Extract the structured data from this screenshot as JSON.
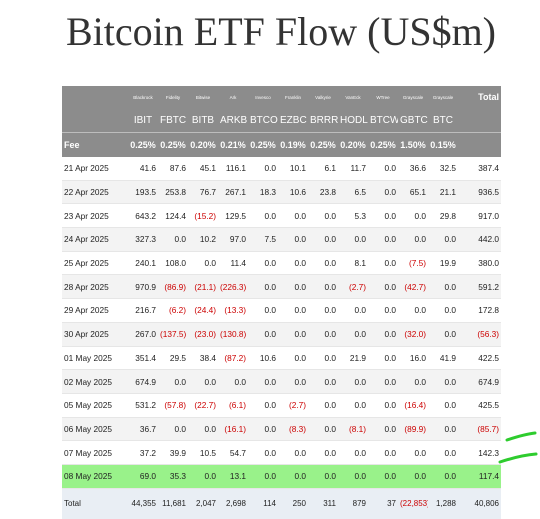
{
  "title": "Bitcoin ETF Flow (US$m)",
  "columns": [
    {
      "issuer": "Blackrock",
      "ticker": "IBIT",
      "fee": "0.25%"
    },
    {
      "issuer": "Fidelity",
      "ticker": "FBTC",
      "fee": "0.25%"
    },
    {
      "issuer": "Bitwise",
      "ticker": "BITB",
      "fee": "0.20%"
    },
    {
      "issuer": "Ark",
      "ticker": "ARKB",
      "fee": "0.21%"
    },
    {
      "issuer": "Invesco",
      "ticker": "BTCO",
      "fee": "0.25%"
    },
    {
      "issuer": "Franklin",
      "ticker": "EZBC",
      "fee": "0.19%"
    },
    {
      "issuer": "Valkyrie",
      "ticker": "BRRR",
      "fee": "0.25%"
    },
    {
      "issuer": "VanEck",
      "ticker": "HODL",
      "fee": "0.20%"
    },
    {
      "issuer": "WTree",
      "ticker": "BTCW",
      "fee": "0.25%"
    },
    {
      "issuer": "Grayscale",
      "ticker": "GBTC",
      "fee": "1.50%"
    },
    {
      "issuer": "Grayscale",
      "ticker": "BTC",
      "fee": "0.15%"
    }
  ],
  "total_header": "Total",
  "fee_label": "Fee",
  "rows": [
    {
      "date": "21 Apr 2025",
      "values": [
        "41.6",
        "87.6",
        "45.1",
        "116.1",
        "0.0",
        "10.1",
        "6.1",
        "11.7",
        "0.0",
        "36.6",
        "32.5"
      ],
      "total": "387.4"
    },
    {
      "date": "22 Apr 2025",
      "values": [
        "193.5",
        "253.8",
        "76.7",
        "267.1",
        "18.3",
        "10.6",
        "23.8",
        "6.5",
        "0.0",
        "65.1",
        "21.1"
      ],
      "total": "936.5"
    },
    {
      "date": "23 Apr 2025",
      "values": [
        "643.2",
        "124.4",
        "(15.2)",
        "129.5",
        "0.0",
        "0.0",
        "0.0",
        "5.3",
        "0.0",
        "0.0",
        "29.8"
      ],
      "total": "917.0"
    },
    {
      "date": "24 Apr 2025",
      "values": [
        "327.3",
        "0.0",
        "10.2",
        "97.0",
        "7.5",
        "0.0",
        "0.0",
        "0.0",
        "0.0",
        "0.0",
        "0.0"
      ],
      "total": "442.0"
    },
    {
      "date": "25 Apr 2025",
      "values": [
        "240.1",
        "108.0",
        "0.0",
        "11.4",
        "0.0",
        "0.0",
        "0.0",
        "8.1",
        "0.0",
        "(7.5)",
        "19.9"
      ],
      "total": "380.0"
    },
    {
      "date": "28 Apr 2025",
      "values": [
        "970.9",
        "(86.9)",
        "(21.1)",
        "(226.3)",
        "0.0",
        "0.0",
        "0.0",
        "(2.7)",
        "0.0",
        "(42.7)",
        "0.0"
      ],
      "total": "591.2"
    },
    {
      "date": "29 Apr 2025",
      "values": [
        "216.7",
        "(6.2)",
        "(24.4)",
        "(13.3)",
        "0.0",
        "0.0",
        "0.0",
        "0.0",
        "0.0",
        "0.0",
        "0.0"
      ],
      "total": "172.8"
    },
    {
      "date": "30 Apr 2025",
      "values": [
        "267.0",
        "(137.5)",
        "(23.0)",
        "(130.8)",
        "0.0",
        "0.0",
        "0.0",
        "0.0",
        "0.0",
        "(32.0)",
        "0.0"
      ],
      "total": "(56.3)"
    },
    {
      "date": "01 May 2025",
      "values": [
        "351.4",
        "29.5",
        "38.4",
        "(87.2)",
        "10.6",
        "0.0",
        "0.0",
        "21.9",
        "0.0",
        "16.0",
        "41.9"
      ],
      "total": "422.5"
    },
    {
      "date": "02 May 2025",
      "values": [
        "674.9",
        "0.0",
        "0.0",
        "0.0",
        "0.0",
        "0.0",
        "0.0",
        "0.0",
        "0.0",
        "0.0",
        "0.0"
      ],
      "total": "674.9"
    },
    {
      "date": "05 May 2025",
      "values": [
        "531.2",
        "(57.8)",
        "(22.7)",
        "(6.1)",
        "0.0",
        "(2.7)",
        "0.0",
        "0.0",
        "0.0",
        "(16.4)",
        "0.0"
      ],
      "total": "425.5"
    },
    {
      "date": "06 May 2025",
      "values": [
        "36.7",
        "0.0",
        "0.0",
        "(16.1)",
        "0.0",
        "(8.3)",
        "0.0",
        "(8.1)",
        "0.0",
        "(89.9)",
        "0.0"
      ],
      "total": "(85.7)"
    },
    {
      "date": "07 May 2025",
      "values": [
        "37.2",
        "39.9",
        "10.5",
        "54.7",
        "0.0",
        "0.0",
        "0.0",
        "0.0",
        "0.0",
        "0.0",
        "0.0"
      ],
      "total": "142.3"
    },
    {
      "date": "08 May 2025",
      "values": [
        "69.0",
        "35.3",
        "0.0",
        "13.1",
        "0.0",
        "0.0",
        "0.0",
        "0.0",
        "0.0",
        "0.0",
        "0.0"
      ],
      "total": "117.4",
      "highlight": true
    }
  ],
  "totals": {
    "label": "Total",
    "values": [
      "44,355",
      "11,681",
      "2,047",
      "2,698",
      "114",
      "250",
      "311",
      "879",
      "37",
      "(22,853)",
      "1,288"
    ],
    "total": "40,806"
  },
  "colors": {
    "header_bg": "#8c8c8c",
    "highlight": "#99f28a",
    "negative": "#cc0000",
    "annotation": "#2ecc2e"
  }
}
